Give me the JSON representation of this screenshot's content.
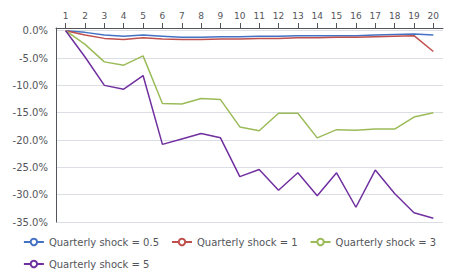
{
  "chart_data": {
    "type": "line",
    "x": [
      1,
      2,
      3,
      4,
      5,
      6,
      7,
      8,
      9,
      10,
      11,
      12,
      13,
      14,
      15,
      16,
      17,
      18,
      19,
      20
    ],
    "series": [
      {
        "name": "Quarterly shock = 0.5",
        "color": "#4472c4",
        "values": [
          0.0,
          -0.003,
          -0.008,
          -0.01,
          -0.008,
          -0.01,
          -0.012,
          -0.012,
          -0.011,
          -0.011,
          -0.01,
          -0.01,
          -0.009,
          -0.009,
          -0.009,
          -0.009,
          -0.008,
          -0.007,
          -0.006,
          -0.008
        ]
      },
      {
        "name": "Quarterly shock = 1",
        "color": "#c0504d",
        "values": [
          0.0,
          -0.008,
          -0.014,
          -0.016,
          -0.013,
          -0.015,
          -0.016,
          -0.016,
          -0.015,
          -0.015,
          -0.014,
          -0.014,
          -0.013,
          -0.013,
          -0.012,
          -0.012,
          -0.011,
          -0.01,
          -0.009,
          -0.038
        ]
      },
      {
        "name": "Quarterly shock = 3",
        "color": "#9bbb59",
        "values": [
          0.0,
          -0.025,
          -0.057,
          -0.063,
          -0.046,
          -0.133,
          -0.134,
          -0.124,
          -0.126,
          -0.176,
          -0.183,
          -0.151,
          -0.151,
          -0.196,
          -0.181,
          -0.182,
          -0.18,
          -0.18,
          -0.158,
          -0.15
        ]
      },
      {
        "name": "Quarterly shock = 5",
        "color": "#7030a0",
        "values": [
          0.0,
          -0.048,
          -0.1,
          -0.107,
          -0.082,
          -0.208,
          -0.198,
          -0.188,
          -0.196,
          -0.267,
          -0.254,
          -0.292,
          -0.26,
          -0.302,
          -0.26,
          -0.323,
          -0.255,
          -0.298,
          -0.333,
          -0.343
        ]
      }
    ],
    "xlim": [
      0.5,
      20.5
    ],
    "xticks": [
      1,
      2,
      3,
      4,
      5,
      6,
      7,
      8,
      9,
      10,
      11,
      12,
      13,
      14,
      15,
      16,
      17,
      18,
      19,
      20
    ],
    "ylim": [
      -0.35,
      0.005
    ],
    "yticks": [
      {
        "value": 0.0,
        "label": "0.0%"
      },
      {
        "value": -0.05,
        "label": "-5.0%"
      },
      {
        "value": -0.1,
        "label": "-10.0%"
      },
      {
        "value": -0.15,
        "label": "-15.0%"
      },
      {
        "value": -0.2,
        "label": "-20.0%"
      },
      {
        "value": -0.25,
        "label": "-25.0%"
      },
      {
        "value": -0.3,
        "label": "-30.0%"
      },
      {
        "value": -0.35,
        "label": "-35.0%"
      }
    ],
    "grid": true,
    "legend": "bottom"
  }
}
